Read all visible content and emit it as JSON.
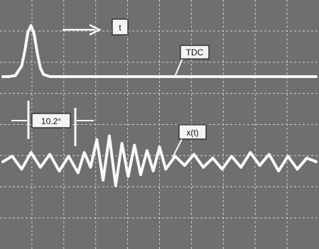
{
  "labels": {
    "time_axis": "t",
    "tdc_trace": "TDC",
    "signal_trace": "x(t)",
    "interval": "10.2°"
  },
  "colors": {
    "screen": "#6f6f6f",
    "grid": "#cfcfcf",
    "trace": "#f7f7f7",
    "label_box": "#f4f4f4"
  },
  "chart_data": {
    "type": "line",
    "title": "",
    "xlabel": "t",
    "ylabel": "",
    "grid": true,
    "grid_divisions": {
      "x": 10,
      "y": 8
    },
    "series": [
      {
        "name": "TDC",
        "x": [
          0,
          0.2,
          0.4,
          0.6,
          0.7,
          0.8,
          0.9,
          1.0,
          1.1,
          1.2,
          1.3,
          1.5,
          2,
          3,
          4,
          5,
          6,
          7,
          8,
          9,
          10
        ],
        "values": [
          0,
          0,
          0.05,
          0.5,
          1.2,
          2.1,
          2.4,
          2.0,
          1.1,
          0.4,
          0.1,
          0,
          0,
          0,
          0,
          0,
          0,
          0,
          0,
          0,
          0
        ]
      },
      {
        "name": "x(t)",
        "x": [
          0,
          0.3,
          0.6,
          0.9,
          1.2,
          1.5,
          1.8,
          2.1,
          2.4,
          2.6,
          2.8,
          3.0,
          3.2,
          3.4,
          3.6,
          3.8,
          4.0,
          4.2,
          4.4,
          4.6,
          4.8,
          5.0,
          5.2,
          5.5,
          5.8,
          6.1,
          6.4,
          6.7,
          7.0,
          7.3,
          7.6,
          7.9,
          8.2,
          8.5,
          8.8,
          9.1,
          9.4,
          9.7,
          10
        ],
        "values": [
          0,
          0.3,
          -0.4,
          0.5,
          -0.3,
          0.4,
          -0.5,
          0.3,
          -0.6,
          0.5,
          -0.3,
          1.2,
          -1.0,
          1.4,
          -1.3,
          1.0,
          -0.8,
          0.9,
          -0.7,
          0.6,
          -0.5,
          0.8,
          -0.4,
          0.3,
          -0.2,
          0.4,
          -0.3,
          0.2,
          -0.4,
          0.3,
          -0.3,
          0.5,
          -0.2,
          0.4,
          -0.5,
          0.3,
          -0.4,
          0.2,
          0
        ]
      }
    ]
  }
}
